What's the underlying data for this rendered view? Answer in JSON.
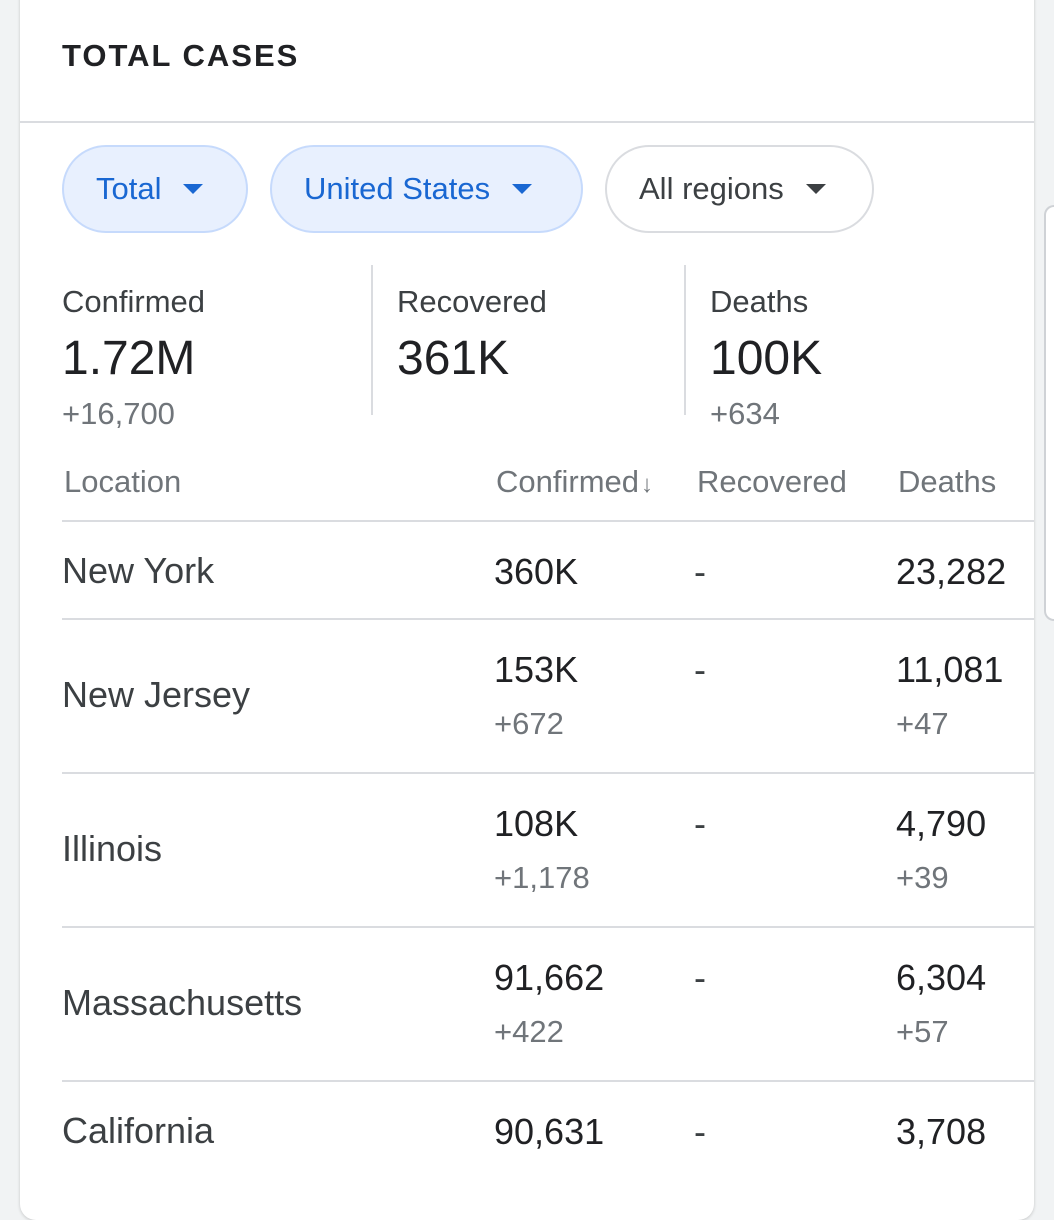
{
  "card": {
    "title": "TOTAL CASES"
  },
  "filters": {
    "total": "Total",
    "country": "United States",
    "region": "All regions"
  },
  "summary": [
    {
      "label": "Confirmed",
      "value": "1.72M",
      "delta": "+16,700"
    },
    {
      "label": "Recovered",
      "value": "361K",
      "delta": ""
    },
    {
      "label": "Deaths",
      "value": "100K",
      "delta": "+634"
    }
  ],
  "table": {
    "headers": {
      "location": "Location",
      "confirmed": "Confirmed",
      "sort_indicator": "↓",
      "recovered": "Recovered",
      "deaths": "Deaths"
    },
    "rows": [
      {
        "location": "New York",
        "confirmed": "360K",
        "confirmed_delta": "",
        "recovered": "-",
        "deaths": "23,282",
        "deaths_delta": ""
      },
      {
        "location": "New Jersey",
        "confirmed": "153K",
        "confirmed_delta": "+672",
        "recovered": "-",
        "deaths": "11,081",
        "deaths_delta": "+47"
      },
      {
        "location": "Illinois",
        "confirmed": "108K",
        "confirmed_delta": "+1,178",
        "recovered": "-",
        "deaths": "4,790",
        "deaths_delta": "+39"
      },
      {
        "location": "Massachusetts",
        "confirmed": "91,662",
        "confirmed_delta": "+422",
        "recovered": "-",
        "deaths": "6,304",
        "deaths_delta": "+57"
      },
      {
        "location": "California",
        "confirmed": "90,631",
        "confirmed_delta": "",
        "recovered": "-",
        "deaths": "3,708",
        "deaths_delta": ""
      }
    ]
  },
  "colors": {
    "accent": "#1967d2",
    "chip_active_bg": "#e8f0fe",
    "divider": "#dadce0",
    "muted_text": "#70757a"
  },
  "icons": {
    "dropdown": "caret-down-icon",
    "sort": "arrow-down-icon"
  }
}
